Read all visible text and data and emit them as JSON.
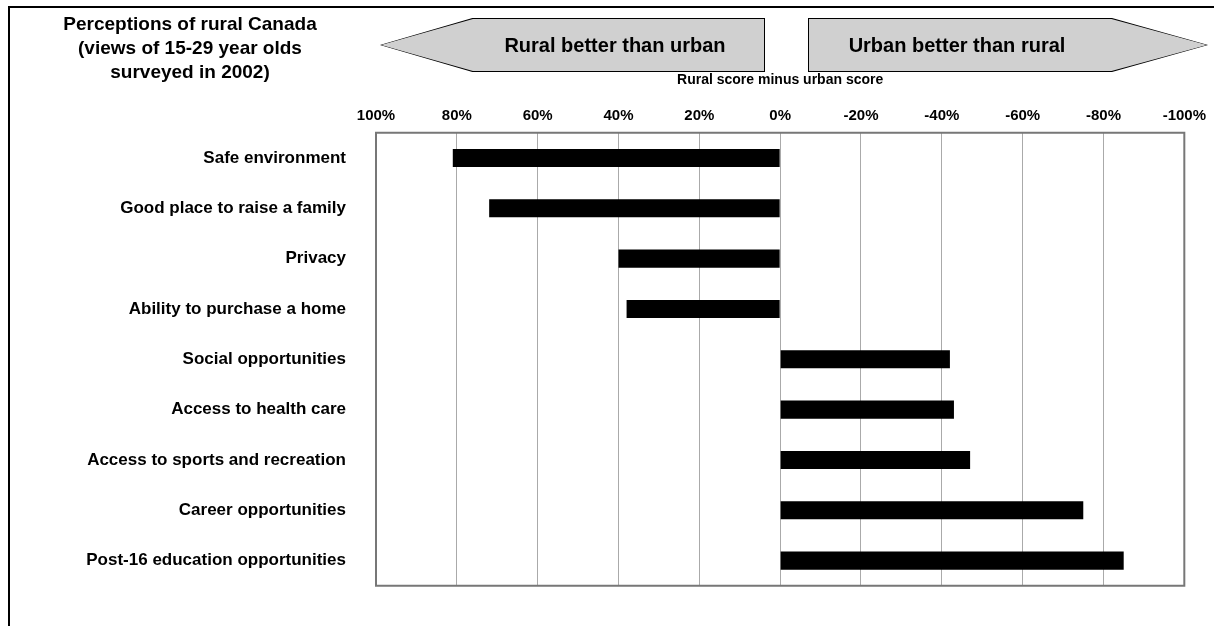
{
  "chart_data": {
    "type": "bar",
    "orientation": "horizontal",
    "title": "Perceptions of rural Canada (views of 15-29 year olds surveyed in 2002)",
    "xlabel": "Rural score minus urban score",
    "annotations": [
      "Rural better than urban",
      "Urban better than rural"
    ],
    "categories": [
      "Safe environment",
      "Good place to raise a family",
      "Privacy",
      "Ability to purchase a home",
      "Social opportunities",
      "Access to health care",
      "Access to sports and recreation",
      "Career opportunities",
      "Post-16 education opportunities"
    ],
    "values": [
      81,
      72,
      40,
      38,
      -42,
      -43,
      -47,
      -75,
      -85
    ],
    "color": "#000000",
    "xlim": [
      100,
      -100
    ],
    "xticks": [
      {
        "value": 100,
        "label": "100%"
      },
      {
        "value": 80,
        "label": "80%"
      },
      {
        "value": 60,
        "label": "60%"
      },
      {
        "value": 40,
        "label": "40%"
      },
      {
        "value": 20,
        "label": "20%"
      },
      {
        "value": 0,
        "label": "0%"
      },
      {
        "value": -20,
        "label": "-20%"
      },
      {
        "value": -40,
        "label": "-40%"
      },
      {
        "value": -60,
        "label": "-60%"
      },
      {
        "value": -80,
        "label": "-80%"
      },
      {
        "value": -100,
        "label": "-100%"
      }
    ],
    "grid": "x",
    "legend": false
  }
}
